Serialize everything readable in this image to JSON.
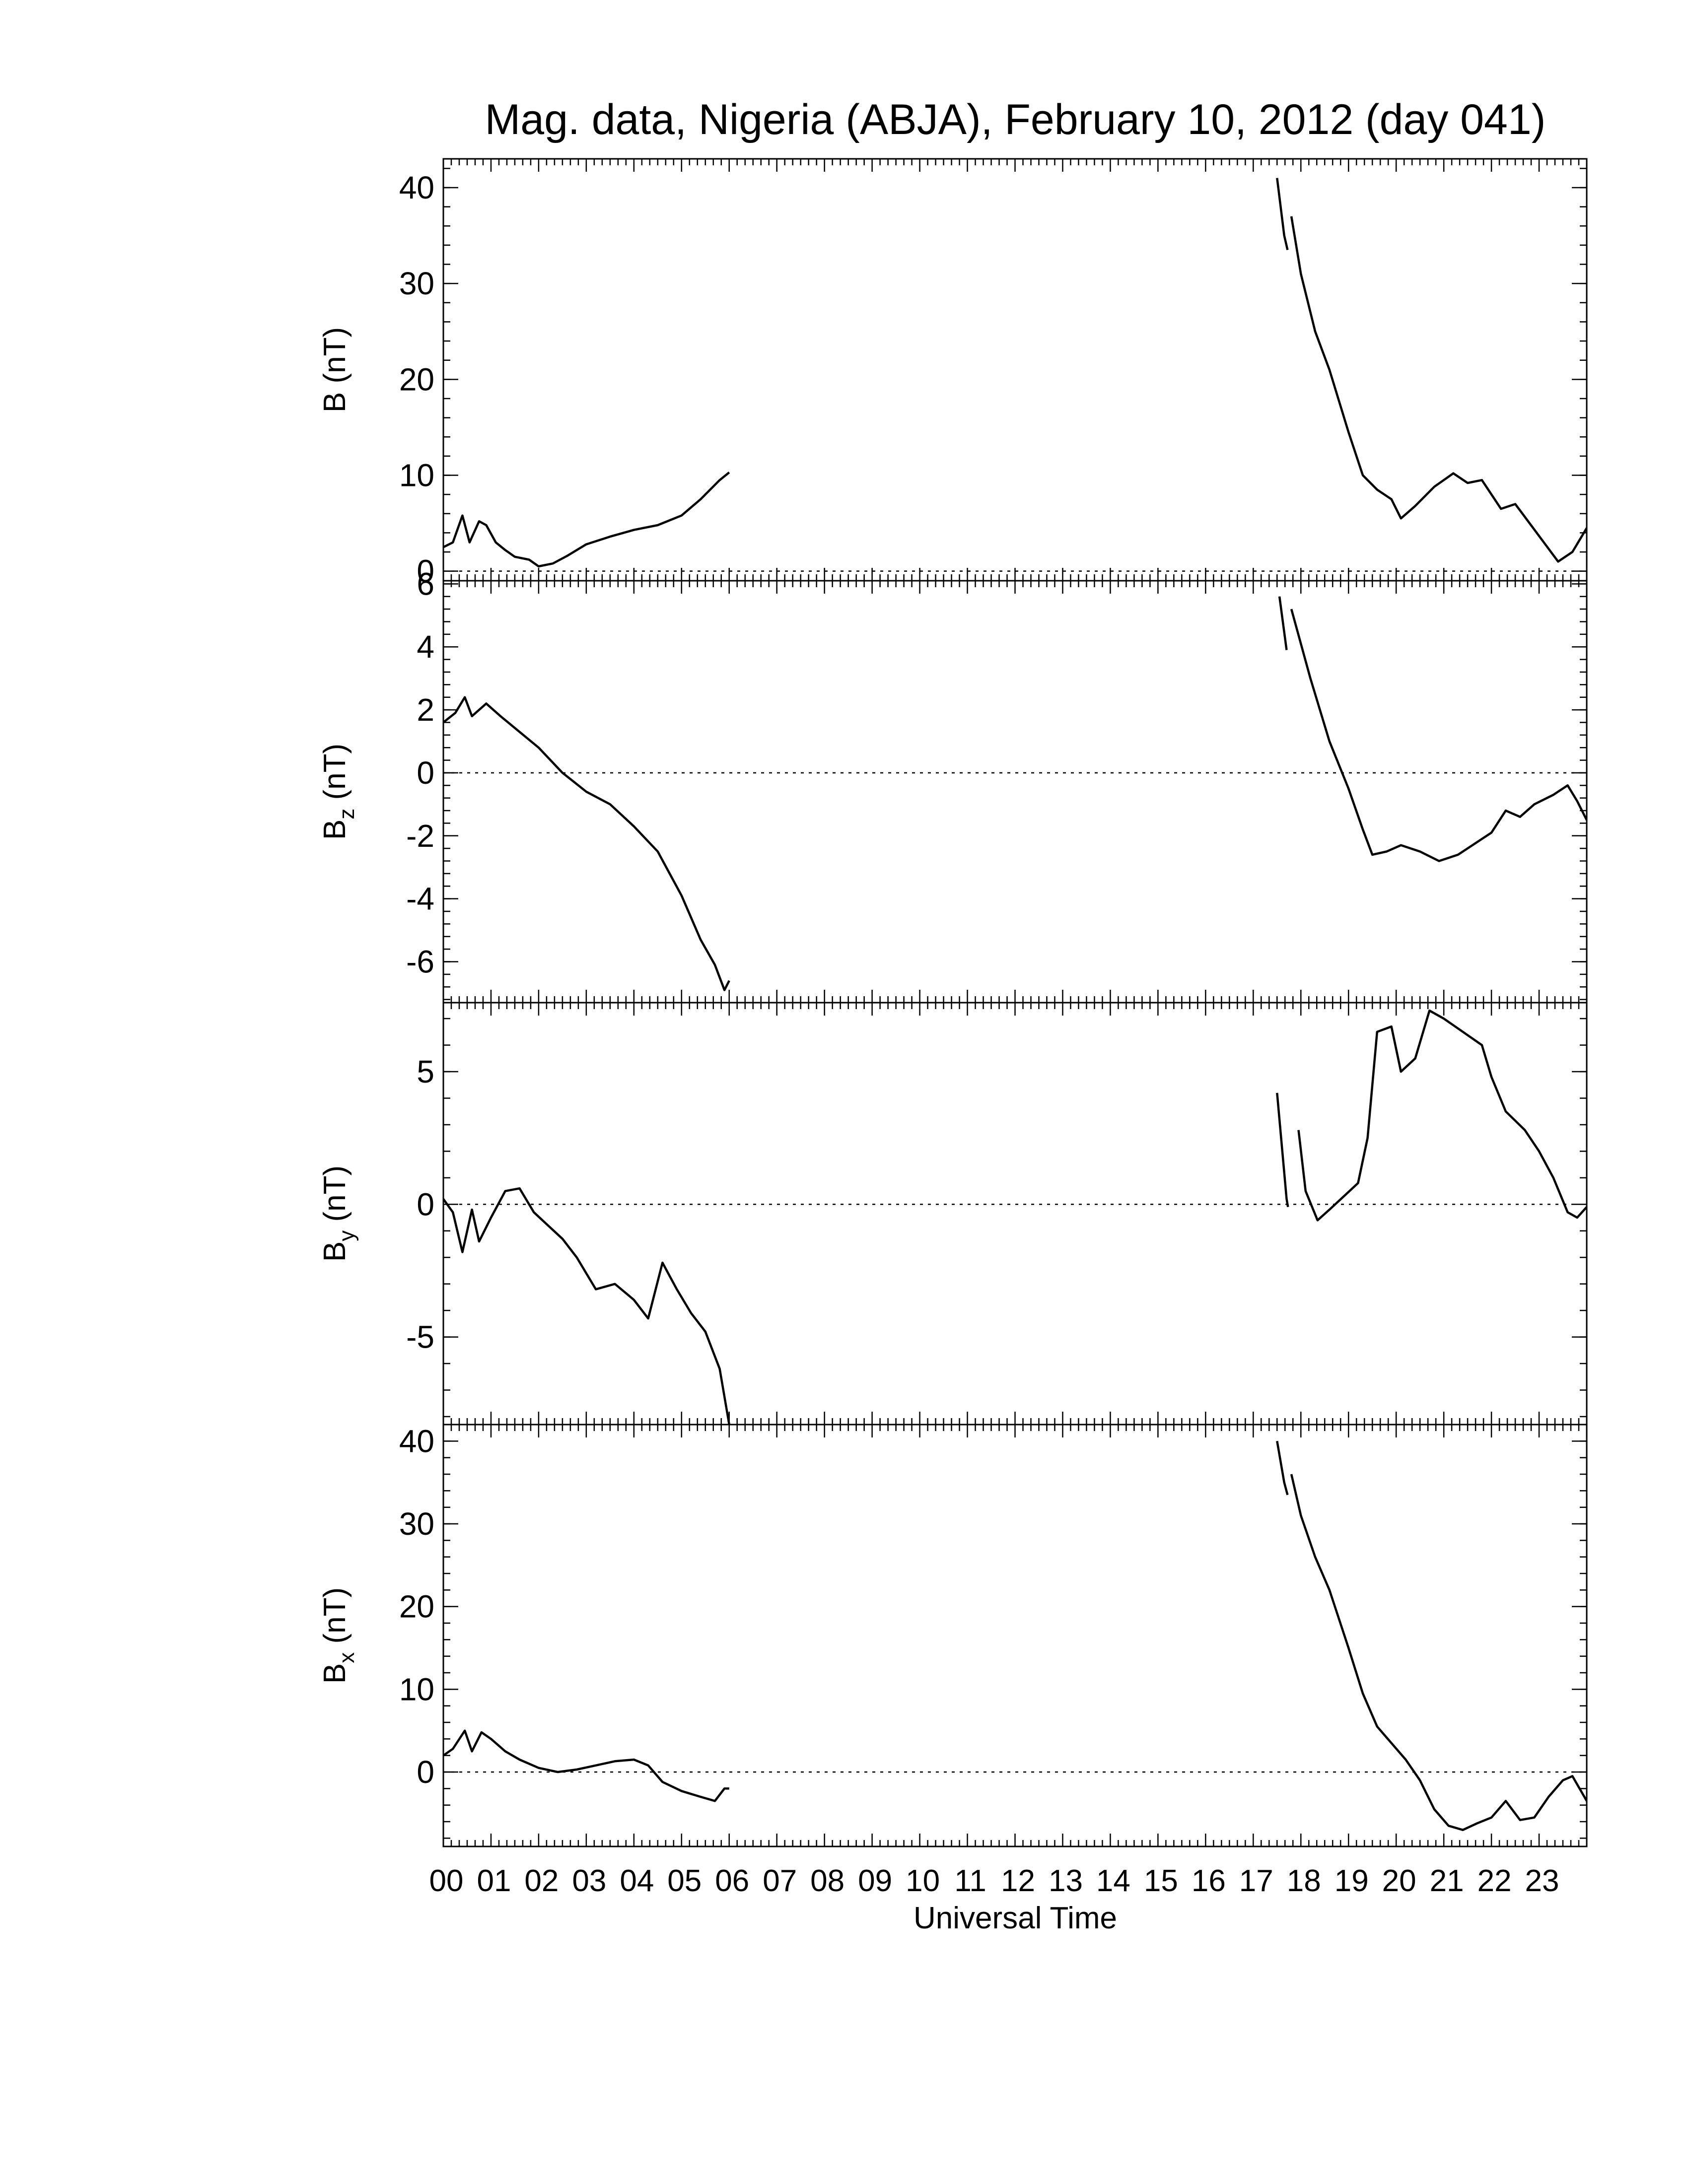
{
  "title": "Mag. data, Nigeria (ABJA), February 10, 2012 (day 041)",
  "xlabel": "Universal Time",
  "x_tick_labels": [
    "00",
    "01",
    "02",
    "03",
    "04",
    "05",
    "06",
    "07",
    "08",
    "09",
    "10",
    "11",
    "12",
    "13",
    "14",
    "15",
    "16",
    "17",
    "18",
    "19",
    "20",
    "21",
    "22",
    "23"
  ],
  "chart_data": [
    {
      "type": "line",
      "ylabel": "B (nT)",
      "ylabel_base": "B",
      "ylabel_sub": "",
      "ylabel_unit": " (nT)",
      "xlim": [
        0,
        24
      ],
      "ylim": [
        -1,
        43
      ],
      "yticks": [
        0,
        10,
        20,
        30,
        40
      ],
      "zero_line": true,
      "segments": [
        [
          [
            0.0,
            2.5
          ],
          [
            0.2,
            3.0
          ],
          [
            0.4,
            5.8
          ],
          [
            0.55,
            3.0
          ],
          [
            0.75,
            5.2
          ],
          [
            0.9,
            4.8
          ],
          [
            1.1,
            3.0
          ],
          [
            1.3,
            2.2
          ],
          [
            1.5,
            1.5
          ],
          [
            1.8,
            1.2
          ],
          [
            2.0,
            0.5
          ],
          [
            2.3,
            0.8
          ],
          [
            2.6,
            1.6
          ],
          [
            3.0,
            2.8
          ],
          [
            3.5,
            3.6
          ],
          [
            4.0,
            4.3
          ],
          [
            4.5,
            4.8
          ],
          [
            5.0,
            5.8
          ],
          [
            5.4,
            7.5
          ],
          [
            5.8,
            9.5
          ],
          [
            6.0,
            10.3
          ]
        ],
        [
          [
            17.5,
            41.0
          ],
          [
            17.65,
            35.0
          ],
          [
            17.72,
            33.5
          ]
        ],
        [
          [
            17.8,
            37.0
          ],
          [
            18.0,
            31.0
          ],
          [
            18.3,
            25.0
          ],
          [
            18.6,
            21.0
          ],
          [
            19.0,
            14.5
          ],
          [
            19.3,
            10.0
          ],
          [
            19.6,
            8.5
          ],
          [
            19.9,
            7.5
          ],
          [
            20.1,
            5.5
          ],
          [
            20.4,
            6.8
          ],
          [
            20.8,
            8.8
          ],
          [
            21.2,
            10.2
          ],
          [
            21.5,
            9.2
          ],
          [
            21.8,
            9.5
          ],
          [
            22.0,
            8.0
          ],
          [
            22.2,
            6.5
          ],
          [
            22.5,
            7.0
          ],
          [
            22.8,
            5.0
          ],
          [
            23.1,
            3.0
          ],
          [
            23.4,
            1.0
          ],
          [
            23.7,
            2.0
          ],
          [
            24.0,
            4.5
          ]
        ]
      ]
    },
    {
      "type": "line",
      "ylabel": "Bz (nT)",
      "ylabel_base": "B",
      "ylabel_sub": "z",
      "ylabel_unit": " (nT)",
      "xlim": [
        0,
        24
      ],
      "ylim": [
        -7.3,
        6.1
      ],
      "yticks": [
        -6,
        -4,
        -2,
        0,
        2,
        4,
        6
      ],
      "zero_line": true,
      "segments": [
        [
          [
            0.0,
            1.6
          ],
          [
            0.25,
            1.9
          ],
          [
            0.45,
            2.4
          ],
          [
            0.6,
            1.8
          ],
          [
            0.9,
            2.2
          ],
          [
            1.2,
            1.8
          ],
          [
            1.6,
            1.3
          ],
          [
            2.0,
            0.8
          ],
          [
            2.5,
            0.0
          ],
          [
            3.0,
            -0.6
          ],
          [
            3.5,
            -1.0
          ],
          [
            4.0,
            -1.7
          ],
          [
            4.5,
            -2.5
          ],
          [
            5.0,
            -3.9
          ],
          [
            5.4,
            -5.3
          ],
          [
            5.7,
            -6.1
          ],
          [
            5.9,
            -6.9
          ],
          [
            6.0,
            -6.6
          ]
        ],
        [
          [
            17.55,
            5.6
          ],
          [
            17.7,
            3.9
          ]
        ],
        [
          [
            17.8,
            5.2
          ],
          [
            18.2,
            3.0
          ],
          [
            18.6,
            1.0
          ],
          [
            19.0,
            -0.5
          ],
          [
            19.3,
            -1.8
          ],
          [
            19.5,
            -2.6
          ],
          [
            19.8,
            -2.5
          ],
          [
            20.1,
            -2.3
          ],
          [
            20.5,
            -2.5
          ],
          [
            20.9,
            -2.8
          ],
          [
            21.3,
            -2.6
          ],
          [
            21.7,
            -2.2
          ],
          [
            22.0,
            -1.9
          ],
          [
            22.3,
            -1.2
          ],
          [
            22.6,
            -1.4
          ],
          [
            22.9,
            -1.0
          ],
          [
            23.3,
            -0.7
          ],
          [
            23.6,
            -0.4
          ],
          [
            23.8,
            -0.9
          ],
          [
            24.0,
            -1.5
          ]
        ]
      ]
    },
    {
      "type": "line",
      "ylabel": "By (nT)",
      "ylabel_base": "B",
      "ylabel_sub": "y",
      "ylabel_unit": " (nT)",
      "xlim": [
        0,
        24
      ],
      "ylim": [
        -8.3,
        7.6
      ],
      "yticks": [
        -5,
        0,
        5
      ],
      "zero_line": true,
      "segments": [
        [
          [
            0.0,
            0.2
          ],
          [
            0.2,
            -0.3
          ],
          [
            0.4,
            -1.8
          ],
          [
            0.6,
            -0.2
          ],
          [
            0.75,
            -1.4
          ],
          [
            1.0,
            -0.5
          ],
          [
            1.3,
            0.5
          ],
          [
            1.6,
            0.6
          ],
          [
            1.9,
            -0.3
          ],
          [
            2.2,
            -0.8
          ],
          [
            2.5,
            -1.3
          ],
          [
            2.8,
            -2.0
          ],
          [
            3.2,
            -3.2
          ],
          [
            3.6,
            -3.0
          ],
          [
            4.0,
            -3.6
          ],
          [
            4.3,
            -4.3
          ],
          [
            4.6,
            -2.2
          ],
          [
            4.9,
            -3.2
          ],
          [
            5.2,
            -4.1
          ],
          [
            5.5,
            -4.8
          ],
          [
            5.8,
            -6.2
          ],
          [
            6.0,
            -8.3
          ]
        ],
        [
          [
            17.5,
            4.2
          ],
          [
            17.7,
            0.2
          ],
          [
            17.73,
            -0.1
          ]
        ],
        [
          [
            17.95,
            2.8
          ],
          [
            18.1,
            0.5
          ],
          [
            18.35,
            -0.6
          ],
          [
            18.6,
            -0.2
          ],
          [
            18.9,
            0.3
          ],
          [
            19.2,
            0.8
          ],
          [
            19.4,
            2.5
          ],
          [
            19.6,
            6.5
          ],
          [
            19.9,
            6.7
          ],
          [
            20.1,
            5.0
          ],
          [
            20.4,
            5.5
          ],
          [
            20.7,
            7.3
          ],
          [
            21.0,
            7.0
          ],
          [
            21.4,
            6.5
          ],
          [
            21.8,
            6.0
          ],
          [
            22.0,
            4.8
          ],
          [
            22.3,
            3.5
          ],
          [
            22.7,
            2.8
          ],
          [
            23.0,
            2.0
          ],
          [
            23.3,
            1.0
          ],
          [
            23.6,
            -0.3
          ],
          [
            23.8,
            -0.5
          ],
          [
            24.0,
            -0.1
          ]
        ]
      ]
    },
    {
      "type": "line",
      "ylabel": "Bx (nT)",
      "ylabel_base": "B",
      "ylabel_sub": "x",
      "ylabel_unit": " (nT)",
      "xlim": [
        0,
        24
      ],
      "ylim": [
        -9,
        42
      ],
      "yticks": [
        0,
        10,
        20,
        30,
        40
      ],
      "zero_line": true,
      "segments": [
        [
          [
            0.0,
            2.0
          ],
          [
            0.2,
            2.8
          ],
          [
            0.45,
            5.0
          ],
          [
            0.6,
            2.5
          ],
          [
            0.8,
            4.8
          ],
          [
            1.0,
            4.0
          ],
          [
            1.3,
            2.5
          ],
          [
            1.6,
            1.5
          ],
          [
            2.0,
            0.5
          ],
          [
            2.4,
            0.0
          ],
          [
            2.8,
            0.3
          ],
          [
            3.2,
            0.8
          ],
          [
            3.6,
            1.3
          ],
          [
            4.0,
            1.5
          ],
          [
            4.3,
            0.8
          ],
          [
            4.6,
            -1.2
          ],
          [
            5.0,
            -2.3
          ],
          [
            5.4,
            -3.0
          ],
          [
            5.7,
            -3.5
          ],
          [
            5.9,
            -2.0
          ],
          [
            6.0,
            -2.0
          ]
        ],
        [
          [
            17.5,
            40.0
          ],
          [
            17.65,
            35.0
          ],
          [
            17.72,
            33.5
          ]
        ],
        [
          [
            17.8,
            36.0
          ],
          [
            18.0,
            31.0
          ],
          [
            18.3,
            26.0
          ],
          [
            18.6,
            22.0
          ],
          [
            19.0,
            15.0
          ],
          [
            19.3,
            9.5
          ],
          [
            19.6,
            5.5
          ],
          [
            19.9,
            3.5
          ],
          [
            20.2,
            1.5
          ],
          [
            20.5,
            -1.0
          ],
          [
            20.8,
            -4.5
          ],
          [
            21.1,
            -6.5
          ],
          [
            21.4,
            -7.0
          ],
          [
            21.7,
            -6.2
          ],
          [
            22.0,
            -5.5
          ],
          [
            22.3,
            -3.5
          ],
          [
            22.6,
            -5.8
          ],
          [
            22.9,
            -5.5
          ],
          [
            23.2,
            -3.0
          ],
          [
            23.5,
            -1.0
          ],
          [
            23.7,
            -0.5
          ],
          [
            23.85,
            -2.0
          ],
          [
            24.0,
            -3.5
          ]
        ]
      ]
    }
  ]
}
